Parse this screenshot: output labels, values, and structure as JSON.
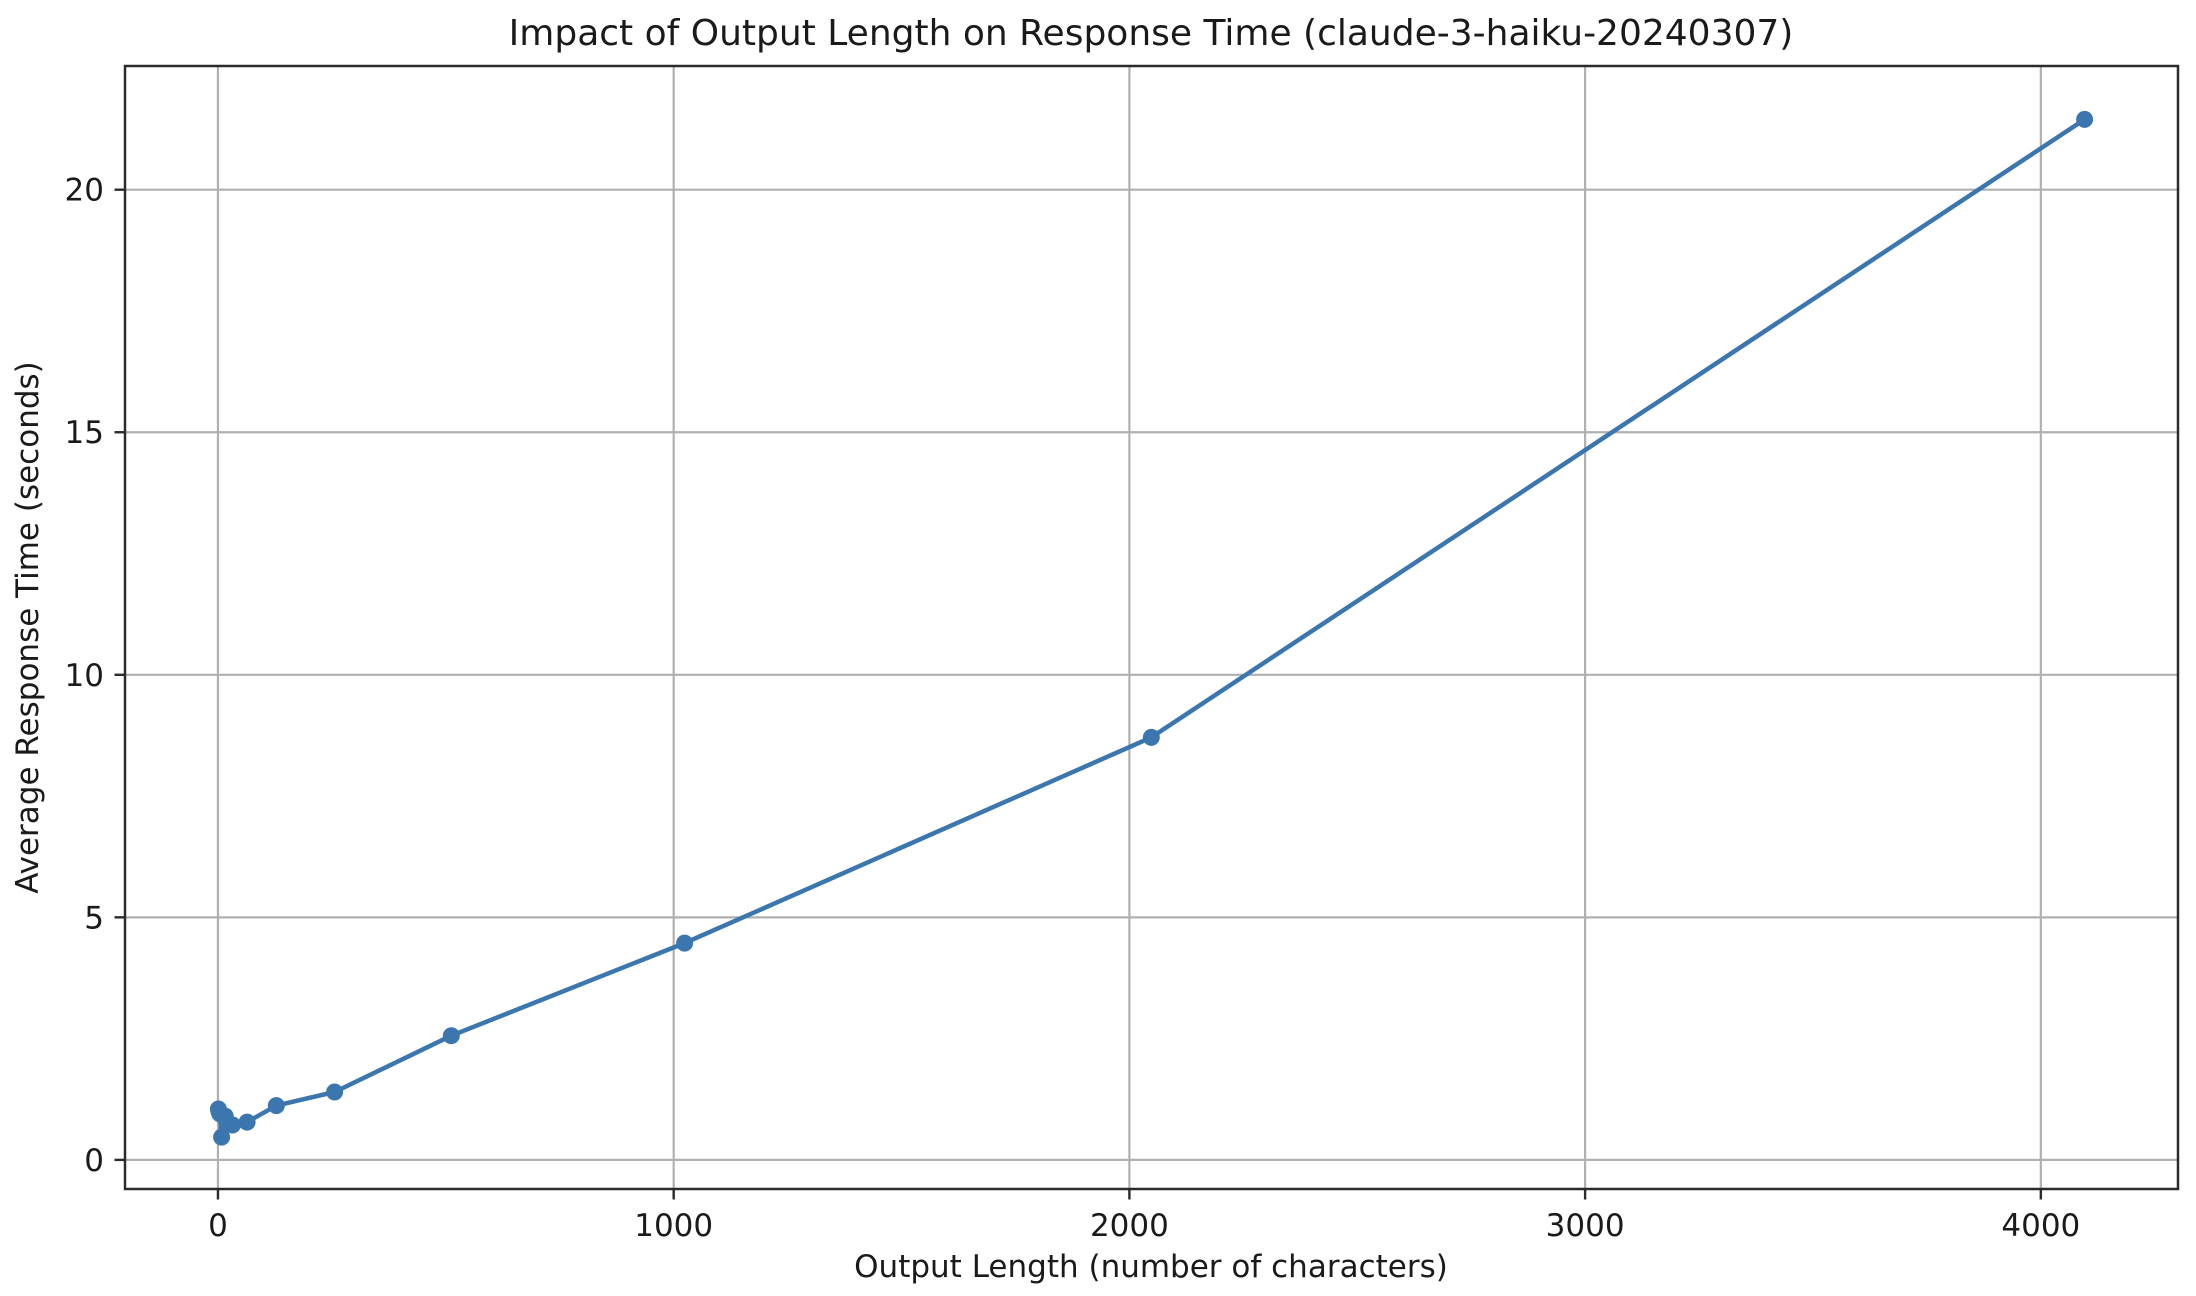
{
  "chart_data": {
    "type": "line",
    "title": "Impact of Output Length on Response Time (claude-3-haiku-20240307)",
    "xlabel": "Output Length (number of characters)",
    "ylabel": "Average Response Time (seconds)",
    "series": [
      {
        "name": "average response time",
        "x": [
          1,
          2,
          4,
          8,
          16,
          32,
          64,
          128,
          256,
          512,
          1024,
          2048,
          4096
        ],
        "y": [
          1.05,
          1.0,
          0.95,
          0.47,
          0.9,
          0.72,
          0.78,
          1.12,
          1.4,
          2.56,
          4.47,
          8.71,
          21.45
        ]
      }
    ],
    "x_ticks": [
      0,
      1000,
      2000,
      3000,
      4000
    ],
    "y_ticks": [
      0,
      5,
      10,
      15,
      20
    ],
    "xlim": [
      -204,
      4301
    ],
    "ylim": [
      -0.6,
      22.55
    ],
    "grid": true,
    "legend": "none",
    "marker": "circle",
    "colors": {
      "line": "#3b76af",
      "grid": "#b0b0b0",
      "spine": "#2b2b2b",
      "text": "#1a1a1a",
      "background": "#ffffff"
    }
  }
}
